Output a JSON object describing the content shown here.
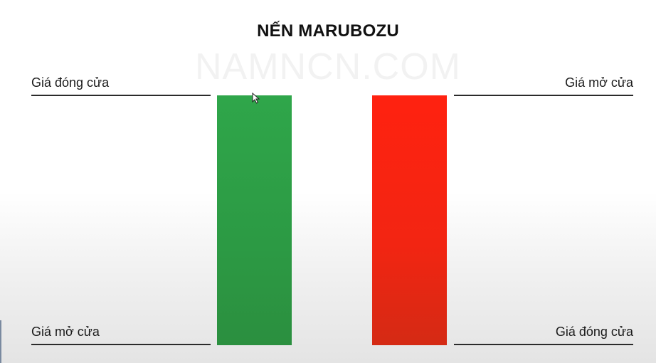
{
  "title": "NẾN MARUBOZU",
  "watermark": "NAMNCN.COM",
  "bullish_candle": {
    "color": "#2fa64a",
    "top_label": "Giá đóng cửa",
    "bottom_label": "Giá mở cửa"
  },
  "bearish_candle": {
    "color": "#ff2210",
    "top_label": "Giá mở cửa",
    "bottom_label": "Giá đóng cửa"
  }
}
